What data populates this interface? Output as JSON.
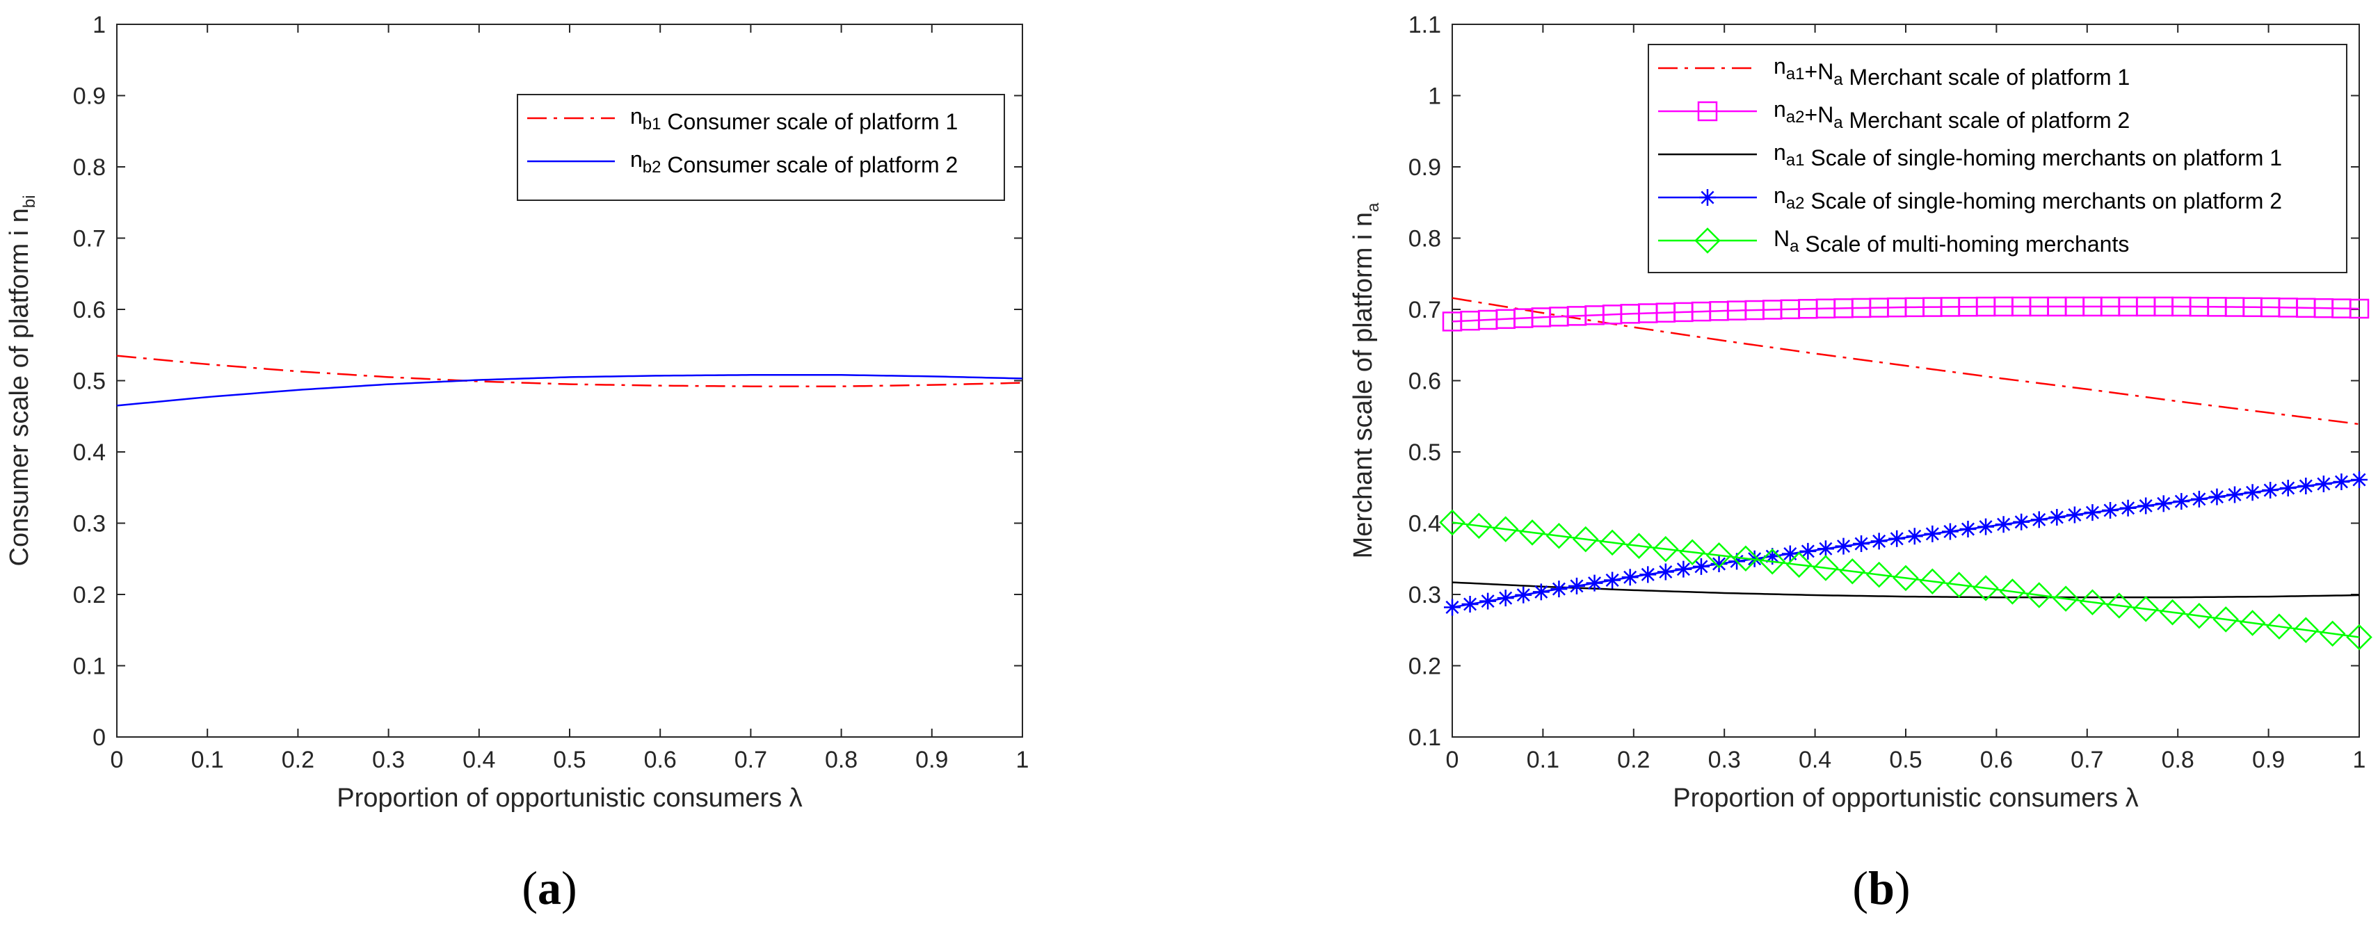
{
  "chart_data": [
    {
      "type": "line",
      "panel_label_open": "(",
      "panel_label_letter": "a",
      "panel_label_close": ")",
      "xlabel": "Proportion of opportunistic consumers λ",
      "ylabel": "Consumer scale of platform i n",
      "ylabel_sub": "bi",
      "xlim": [
        0,
        1
      ],
      "ylim": [
        0,
        1
      ],
      "xticks": [
        0,
        0.1,
        0.2,
        0.3,
        0.4,
        0.5,
        0.6,
        0.7,
        0.8,
        0.9,
        1
      ],
      "xtick_labels": [
        "0",
        "0.1",
        "0.2",
        "0.3",
        "0.4",
        "0.5",
        "0.6",
        "0.7",
        "0.8",
        "0.9",
        "1"
      ],
      "yticks": [
        0,
        0.1,
        0.2,
        0.3,
        0.4,
        0.5,
        0.6,
        0.7,
        0.8,
        0.9,
        1
      ],
      "ytick_labels": [
        "0",
        "0.1",
        "0.2",
        "0.3",
        "0.4",
        "0.5",
        "0.6",
        "0.7",
        "0.8",
        "0.9",
        "1"
      ],
      "grid": false,
      "legend_position": "top-right",
      "series": [
        {
          "name": "n_b1 Consumer scale of platform 1",
          "symbol": "n",
          "symbol_sub": "b1",
          "label": "Consumer scale of platform 1",
          "color": "#ff0000",
          "style": "dashdot",
          "marker": "none",
          "x": [
            0,
            0.1,
            0.2,
            0.3,
            0.4,
            0.5,
            0.6,
            0.7,
            0.8,
            0.9,
            1
          ],
          "y": [
            0.535,
            0.523,
            0.513,
            0.505,
            0.499,
            0.495,
            0.493,
            0.492,
            0.492,
            0.494,
            0.497
          ]
        },
        {
          "name": "n_b2 Consumer scale of platform 2",
          "symbol": "n",
          "symbol_sub": "b2",
          "label": "Consumer scale of platform 2",
          "color": "#0000ff",
          "style": "solid",
          "marker": "none",
          "x": [
            0,
            0.1,
            0.2,
            0.3,
            0.4,
            0.5,
            0.6,
            0.7,
            0.8,
            0.9,
            1
          ],
          "y": [
            0.465,
            0.477,
            0.487,
            0.495,
            0.501,
            0.505,
            0.507,
            0.508,
            0.508,
            0.506,
            0.503
          ]
        }
      ]
    },
    {
      "type": "line",
      "panel_label_open": "(",
      "panel_label_letter": "b",
      "panel_label_close": ")",
      "xlabel": "Proportion of opportunistic consumers λ",
      "ylabel": "Merchant scale of platform i n",
      "ylabel_sub": "a",
      "xlim": [
        0,
        1
      ],
      "ylim": [
        0.1,
        1.1
      ],
      "xticks": [
        0,
        0.1,
        0.2,
        0.3,
        0.4,
        0.5,
        0.6,
        0.7,
        0.8,
        0.9,
        1
      ],
      "xtick_labels": [
        "0",
        "0.1",
        "0.2",
        "0.3",
        "0.4",
        "0.5",
        "0.6",
        "0.7",
        "0.8",
        "0.9",
        "1"
      ],
      "yticks": [
        0.1,
        0.2,
        0.3,
        0.4,
        0.5,
        0.6,
        0.7,
        0.8,
        0.9,
        1,
        1.1
      ],
      "ytick_labels": [
        "0.1",
        "0.2",
        "0.3",
        "0.4",
        "0.5",
        "0.6",
        "0.7",
        "0.8",
        "0.9",
        "1",
        "1.1"
      ],
      "grid": false,
      "legend_position": "top-right",
      "series": [
        {
          "name": "n_a1+N_a Merchant scale of platform 1",
          "symbol_parts": [
            [
              "n",
              "a1"
            ],
            [
              "+N",
              "a"
            ]
          ],
          "label": "Merchant scale of platform 1",
          "color": "#ff0000",
          "style": "dashdot",
          "marker": "none",
          "x": [
            0,
            0.1,
            0.2,
            0.3,
            0.4,
            0.5,
            0.6,
            0.7,
            0.8,
            0.9,
            1
          ],
          "y": [
            0.716,
            0.695,
            0.675,
            0.656,
            0.638,
            0.621,
            0.604,
            0.588,
            0.571,
            0.555,
            0.539
          ]
        },
        {
          "name": "n_a2+N_a Merchant scale of platform 2",
          "symbol_parts": [
            [
              "n",
              "a2"
            ],
            [
              "+N",
              "a"
            ]
          ],
          "label": "Merchant scale of platform 2",
          "color": "#ff00ff",
          "style": "solid",
          "marker": "square",
          "x": [
            0,
            0.1,
            0.2,
            0.3,
            0.4,
            0.5,
            0.6,
            0.7,
            0.8,
            0.9,
            1
          ],
          "y": [
            0.683,
            0.689,
            0.694,
            0.698,
            0.701,
            0.703,
            0.704,
            0.704,
            0.704,
            0.703,
            0.701
          ]
        },
        {
          "name": "n_a1 Scale of single-homing merchants on platform 1",
          "symbol_parts": [
            [
              "n",
              "a1"
            ]
          ],
          "label": "Scale of single-homing merchants on platform 1",
          "color": "#000000",
          "style": "solid",
          "marker": "none",
          "x": [
            0,
            0.1,
            0.2,
            0.3,
            0.4,
            0.5,
            0.6,
            0.7,
            0.8,
            0.9,
            1
          ],
          "y": [
            0.317,
            0.311,
            0.306,
            0.302,
            0.299,
            0.297,
            0.296,
            0.296,
            0.296,
            0.297,
            0.299
          ]
        },
        {
          "name": "n_a2 Scale of single-homing merchants on platform 2",
          "symbol_parts": [
            [
              "n",
              "a2"
            ]
          ],
          "label": "Scale of single-homing merchants on platform 2",
          "color": "#0000ff",
          "style": "solid",
          "marker": "star",
          "x": [
            0,
            0.1,
            0.2,
            0.3,
            0.4,
            0.5,
            0.6,
            0.7,
            0.8,
            0.9,
            1
          ],
          "y": [
            0.282,
            0.304,
            0.325,
            0.344,
            0.362,
            0.38,
            0.397,
            0.414,
            0.43,
            0.446,
            0.461
          ]
        },
        {
          "name": "N_a Scale of multi-homing merchants",
          "symbol_parts": [
            [
              "N",
              "a"
            ]
          ],
          "label": "Scale of multi-homing merchants",
          "color": "#00ff00",
          "style": "solid",
          "marker": "diamond",
          "x": [
            0,
            0.1,
            0.2,
            0.3,
            0.4,
            0.5,
            0.6,
            0.7,
            0.8,
            0.9,
            1
          ],
          "y": [
            0.401,
            0.385,
            0.369,
            0.354,
            0.339,
            0.323,
            0.307,
            0.29,
            0.274,
            0.257,
            0.24
          ]
        }
      ]
    }
  ]
}
